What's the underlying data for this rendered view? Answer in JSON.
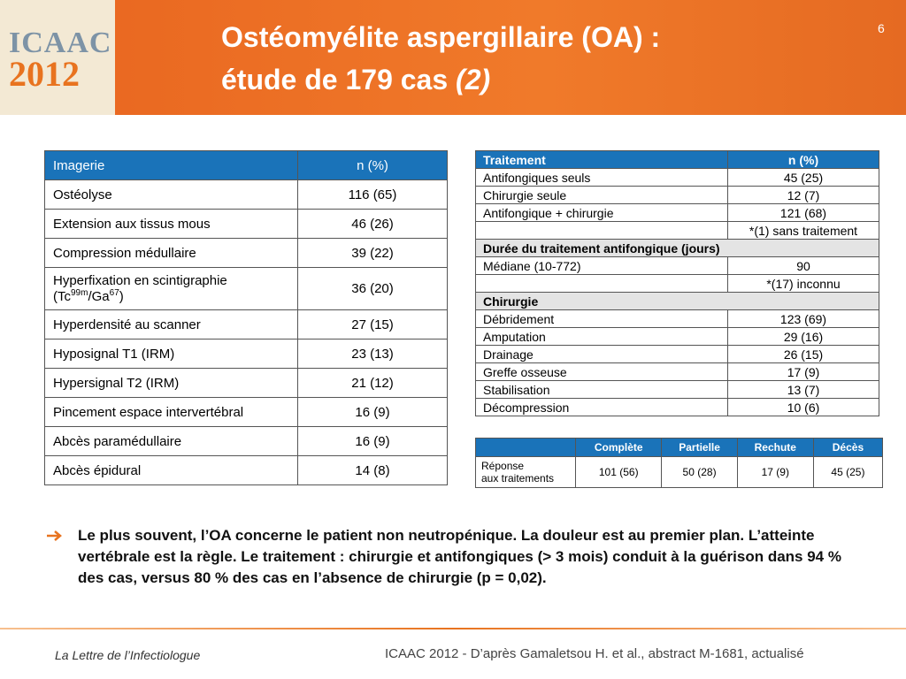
{
  "header": {
    "logo": [
      "ICAAC",
      "2012"
    ],
    "title": [
      "Ostéomyélite aspergillaire (OA) :",
      "étude de 179 cas"
    ],
    "title_italic": "(2)",
    "page_number": "6"
  },
  "imaging_table": {
    "headers": [
      "Imagerie",
      "n (%)"
    ],
    "rows": [
      [
        "Ostéolyse",
        "116 (65)"
      ],
      [
        "Extension aux tissus mous",
        "46 (26)"
      ],
      [
        "Compression médullaire",
        "39 (22)"
      ],
      [
        [
          "Hyperfixation en scintigraphie (Tc",
          "99m",
          "/Ga",
          "67",
          ")"
        ],
        "36 (20)"
      ],
      [
        "Hyperdensité au scanner",
        "27 (15)"
      ],
      [
        "Hyposignal T1 (IRM)",
        "23 (13)"
      ],
      [
        "Hypersignal T2 (IRM)",
        "21 (12)"
      ],
      [
        "Pincement espace intervertébral",
        "16 (9)"
      ],
      [
        "Abcès paramédullaire",
        "16 (9)"
      ],
      [
        "Abcès épidural",
        "14 (8)"
      ]
    ]
  },
  "treatment_table": {
    "headers": [
      "Traitement",
      "n (%)"
    ],
    "rows": [
      [
        "Antifongiques seuls",
        "45 (25)"
      ],
      [
        "Chirurgie seule",
        "12 (7)"
      ],
      [
        "Antifongique + chirurgie",
        "121 (68)"
      ],
      {
        "note": "*(1) sans traitement"
      },
      {
        "section": "Durée du traitement antifongique (jours)"
      },
      [
        "Médiane (10-772)",
        "90"
      ],
      {
        "note": "*(17) inconnu"
      },
      {
        "section": "Chirurgie"
      },
      [
        "Débridement",
        "123 (69)"
      ],
      [
        "Amputation",
        "29 (16)"
      ],
      [
        "Drainage",
        "26 (15)"
      ],
      [
        "Greffe osseuse",
        "17 (9)"
      ],
      [
        "Stabilisation",
        "13 (7)"
      ],
      [
        "Décompression",
        "10 (6)"
      ]
    ]
  },
  "response_table": {
    "headers": [
      "Complète",
      "Partielle",
      "Rechute",
      "Décès"
    ],
    "label": [
      "Réponse",
      "aux traitements"
    ],
    "values": [
      "101 (56)",
      "50 (28)",
      "17 (9)",
      "45 (25)"
    ]
  },
  "bullet": "Le plus souvent, l’OA concerne le patient non neutropénique. La douleur est au premier plan. L’atteinte vertébrale est la règle. Le traitement : chirurgie et antifongiques (> 3 mois) conduit à la guérison dans 94 % des cas, versus 80 % des cas en l’absence de chirurgie (p = 0,02).",
  "footer": {
    "left": "La Lettre de l’Infectiologue",
    "right": "ICAAC 2012 - D’après Gamaletsou H. et al., abstract M-1681, actualisé"
  }
}
